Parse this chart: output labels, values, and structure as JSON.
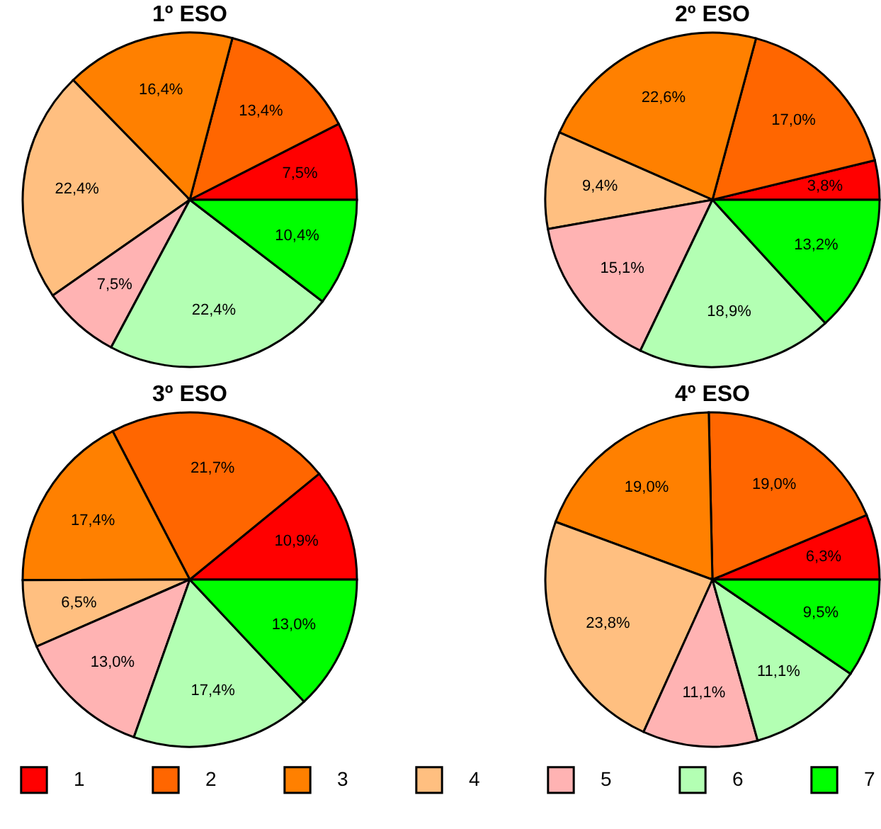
{
  "chart_data": [
    {
      "type": "pie",
      "title": "1º ESO",
      "categories": [
        "1",
        "2",
        "3",
        "4",
        "5",
        "6",
        "7"
      ],
      "values": [
        7.5,
        13.4,
        16.4,
        22.4,
        7.5,
        22.4,
        10.4
      ],
      "value_labels": [
        "7,5%",
        "13,4%",
        "16,4%",
        "22,4%",
        "7,5%",
        "22,4%",
        "10,4%"
      ],
      "colors": [
        "#ff0000",
        "#ff6600",
        "#ff8000",
        "#ffbf80",
        "#ffb3b3",
        "#b3ffb3",
        "#00ff00"
      ],
      "legend": "bottom"
    },
    {
      "type": "pie",
      "title": "2º ESO",
      "categories": [
        null,
        null,
        null,
        null,
        null,
        null,
        null
      ],
      "values": [
        3.8,
        17.0,
        22.6,
        9.4,
        15.1,
        18.9,
        13.2
      ],
      "value_labels": [
        "3,8%",
        "17,0%",
        "22,6%",
        "9,4%",
        "15,1%",
        "18,9%",
        "13,2%"
      ],
      "colors": [
        "#ff0000",
        "#ff6600",
        "#ff8000",
        "#ffbf80",
        "#ffb3b3",
        "#b3ffb3",
        "#00ff00"
      ]
    },
    {
      "type": "pie",
      "title": "3º ESO",
      "categories": [
        null,
        null,
        null,
        null,
        null,
        null,
        null
      ],
      "values": [
        10.9,
        21.7,
        17.4,
        6.5,
        13.0,
        17.4,
        13.0
      ],
      "value_labels": [
        "10,9%",
        "21,7%",
        "17,4%",
        "6,5%",
        "13,0%",
        "17,4%",
        "13,0%"
      ],
      "colors": [
        "#ff0000",
        "#ff6600",
        "#ff8000",
        "#ffbf80",
        "#ffb3b3",
        "#b3ffb3",
        "#00ff00"
      ]
    },
    {
      "type": "pie",
      "title": "4º ESO",
      "categories": [
        null,
        null,
        null,
        null,
        null,
        null,
        null
      ],
      "values": [
        6.3,
        19.0,
        19.0,
        23.8,
        11.1,
        11.1,
        9.5
      ],
      "value_labels": [
        "6,3%",
        "19,0%",
        "19,0%",
        "23,8%",
        "11,1%",
        "11,1%",
        "9,5%"
      ],
      "colors": [
        "#ff0000",
        "#ff6600",
        "#ff8000",
        "#ffbf80",
        "#ffb3b3",
        "#b3ffb3",
        "#00ff00"
      ]
    }
  ]
}
